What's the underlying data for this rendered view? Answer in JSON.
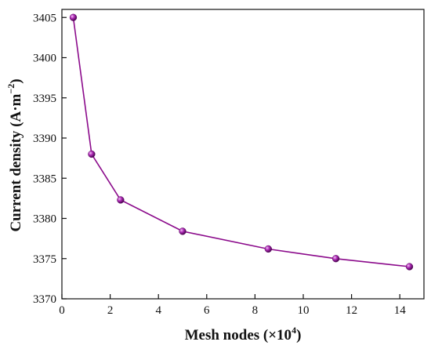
{
  "chart_data": {
    "type": "line",
    "title": "",
    "xlabel": "Mesh nodes (×10",
    "xlabel_sup": "4",
    "xlabel_end": ")",
    "ylabel": "Current density (A·m",
    "ylabel_sup": "−2",
    "ylabel_end": ")",
    "xlim": [
      0,
      15
    ],
    "ylim": [
      3370,
      3406
    ],
    "xticks": [
      "0",
      "2",
      "4",
      "6",
      "8",
      "10",
      "12",
      "14"
    ],
    "xtick_values": [
      0,
      2,
      4,
      6,
      8,
      10,
      12,
      14
    ],
    "yticks": [
      "3370",
      "3375",
      "3380",
      "3385",
      "3390",
      "3395",
      "3400",
      "3405"
    ],
    "ytick_values": [
      3370,
      3375,
      3380,
      3385,
      3390,
      3395,
      3400,
      3405
    ],
    "grid": false,
    "series": [
      {
        "color": "#8b0a8b",
        "marker_color": "#9b1ba0",
        "x": [
          0.47,
          1.23,
          2.43,
          5.0,
          8.55,
          11.35,
          14.4
        ],
        "y": [
          3405.0,
          3388.0,
          3382.3,
          3378.4,
          3376.2,
          3375.0,
          3374.0
        ]
      }
    ]
  }
}
